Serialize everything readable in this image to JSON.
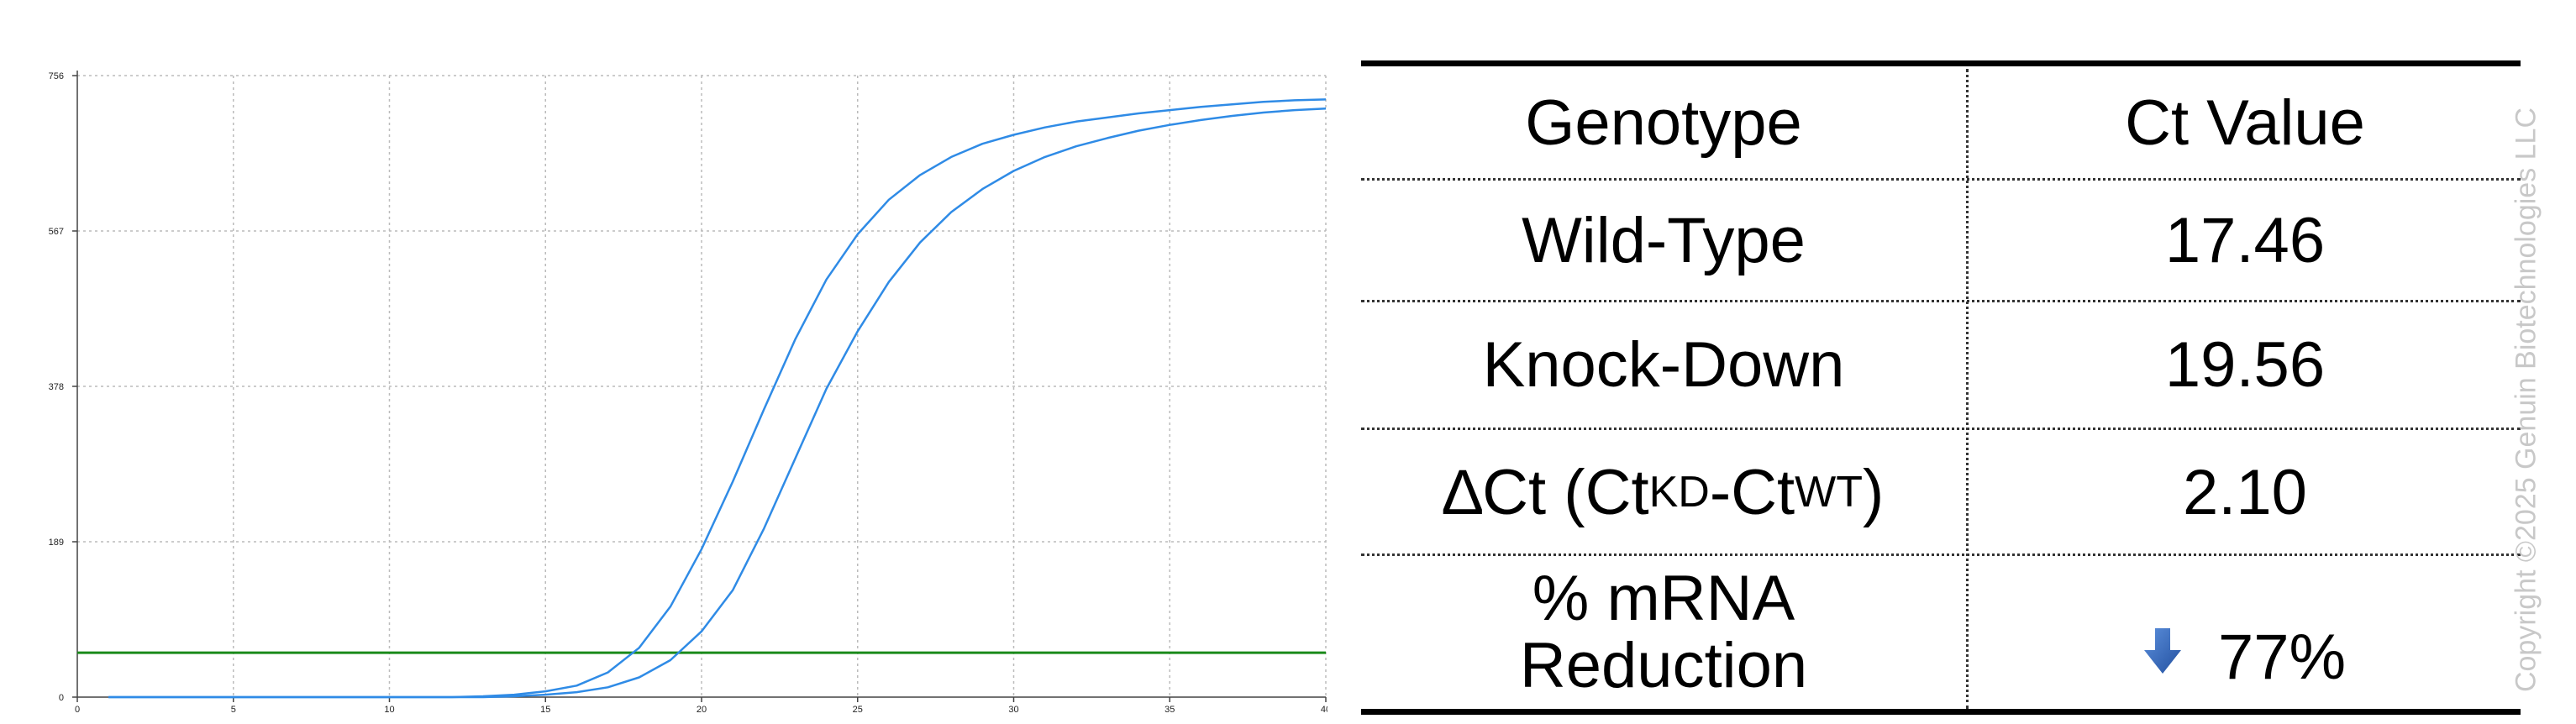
{
  "chart_data": {
    "type": "line",
    "x_ticks": [
      0,
      5,
      10,
      15,
      20,
      25,
      30,
      35,
      40
    ],
    "y_ticks": [
      0,
      189,
      378,
      567,
      756
    ],
    "xlim": [
      0,
      40
    ],
    "ylim": [
      0,
      756
    ],
    "grid": true,
    "threshold": 54,
    "colors": {
      "curves": "#2f8be6",
      "threshold": "#1a8a1a",
      "grid": "#bbbbbb"
    },
    "series": [
      {
        "x": [
          1,
          2,
          3,
          4,
          5,
          6,
          7,
          8,
          9,
          10,
          11,
          12,
          13,
          14,
          15,
          16,
          17,
          18,
          19,
          20,
          21,
          22,
          23,
          24,
          25,
          26,
          27,
          28,
          29,
          30,
          31,
          32,
          33,
          34,
          35,
          36,
          37,
          38,
          39,
          40
        ],
        "y": [
          0,
          0,
          0,
          0,
          0,
          0,
          0,
          0,
          0,
          0,
          0,
          0,
          1,
          3,
          7,
          14,
          30,
          60,
          110,
          180,
          262,
          350,
          435,
          508,
          563,
          605,
          635,
          657,
          673,
          684,
          693,
          700,
          705,
          710,
          714,
          718,
          721,
          724,
          726,
          727
        ]
      },
      {
        "x": [
          1,
          2,
          3,
          4,
          5,
          6,
          7,
          8,
          9,
          10,
          11,
          12,
          13,
          14,
          15,
          16,
          17,
          18,
          19,
          20,
          21,
          22,
          23,
          24,
          25,
          26,
          27,
          28,
          29,
          30,
          31,
          32,
          33,
          34,
          35,
          36,
          37,
          38,
          39,
          40
        ],
        "y": [
          0,
          0,
          0,
          0,
          0,
          0,
          0,
          0,
          0,
          0,
          0,
          0,
          0,
          1,
          3,
          6,
          12,
          24,
          45,
          80,
          130,
          205,
          290,
          375,
          445,
          505,
          553,
          590,
          618,
          640,
          657,
          670,
          680,
          689,
          696,
          702,
          707,
          711,
          714,
          716
        ]
      }
    ]
  },
  "table": {
    "headers": [
      "Genotype",
      "Ct Value"
    ],
    "rows": [
      {
        "label": "Wild-Type",
        "value": "17.46"
      },
      {
        "label": "Knock-Down",
        "value": "19.56"
      },
      {
        "label_prefix": "∆Ct (Ct",
        "label_sub1": "KD",
        "label_mid": "-Ct",
        "label_sub2": "WT",
        "label_suffix": ")",
        "value": "2.10"
      },
      {
        "label_line1": "% mRNA",
        "label_line2": "Reduction",
        "value": "77%",
        "icon": "down-arrow-icon",
        "icon_color": "#3a6fc4"
      }
    ]
  },
  "copyright": "Copyright ©2025 Genuin Biotechnologies LLC"
}
